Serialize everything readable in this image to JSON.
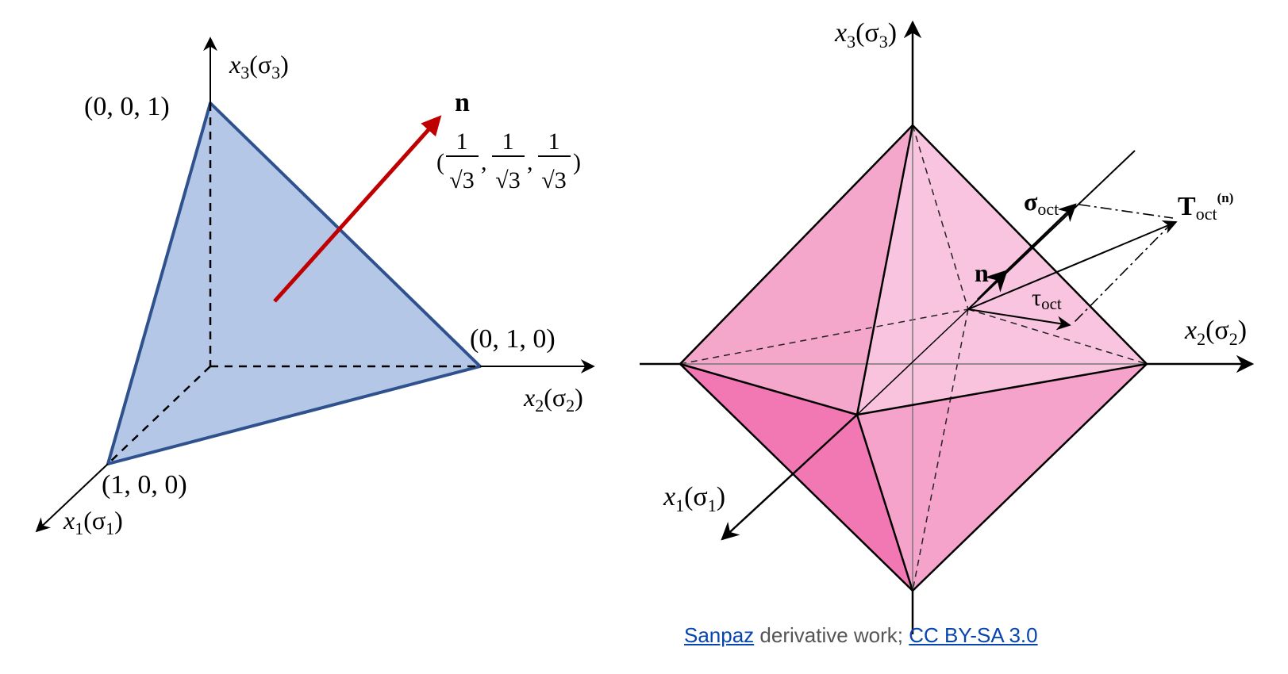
{
  "left_diagram": {
    "axis_x1": {
      "var": "x",
      "sub": "1",
      "paren_open": "(σ",
      "paren_sub": "1",
      "paren_close": ")"
    },
    "axis_x2": {
      "var": "x",
      "sub": "2",
      "paren_open": "(σ",
      "paren_sub": "2",
      "paren_close": ")"
    },
    "axis_x3": {
      "var": "x",
      "sub": "3",
      "paren_open": "(σ",
      "paren_sub": "3",
      "paren_close": ")"
    },
    "point_100": "(1, 0, 0)",
    "point_010": "(0, 1, 0)",
    "point_001": "(0, 0, 1)",
    "normal_label": "n",
    "normal_vec": {
      "open": "(",
      "num": "1",
      "den": "√3",
      "sep": ",",
      "close": ")"
    },
    "colors": {
      "plane_fill": "#b4c7e7",
      "plane_edge": "#2f528f",
      "normal": "#c00000"
    }
  },
  "right_diagram": {
    "axis_x1": {
      "var": "x",
      "sub": "1",
      "paren_open": "(σ",
      "paren_sub": "1",
      "paren_close": ")"
    },
    "axis_x2": {
      "var": "x",
      "sub": "2",
      "paren_open": "(σ",
      "paren_sub": "2",
      "paren_close": ")"
    },
    "axis_x3": {
      "var": "x",
      "sub": "3",
      "paren_open": "(σ",
      "paren_sub": "3",
      "paren_close": ")"
    },
    "sigma_oct": {
      "main": "σ",
      "sub": "oct"
    },
    "t_oct": {
      "main": "T",
      "sub": "oct",
      "sup": "(n)"
    },
    "tau_oct": {
      "main": "τ",
      "sub": "oct"
    },
    "normal_label": "n",
    "colors": {
      "face_light": "#f9c0dc",
      "face_mid": "#f5a6cb",
      "face_dark": "#f278b3",
      "face_darker": "#ef6aaa"
    }
  },
  "credit": {
    "author": "Sanpaz",
    "middle": " derivative work; ",
    "license": "CC BY-SA 3.0"
  }
}
